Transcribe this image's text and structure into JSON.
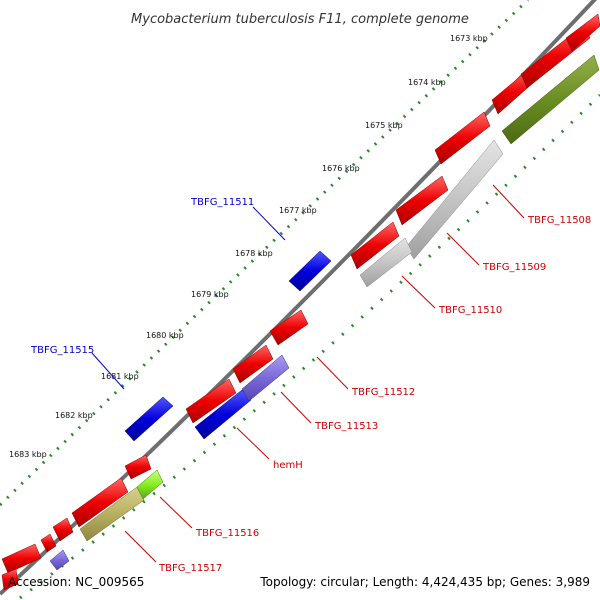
{
  "title": "Mycobacterium tuberculosis F11, complete genome",
  "footer": {
    "accession": "Accession: NC_009565",
    "summary": "Topology: circular; Length: 4,424,435 bp; Genes: 3,989"
  },
  "ticks": [
    "1673 kbp",
    "1674 kbp",
    "1675 kbp",
    "1676 kbp",
    "1677 kbp",
    "1678 kbp",
    "1679 kbp",
    "1680 kbp",
    "1681 kbp",
    "1682 kbp",
    "1683 kbp"
  ],
  "gene_labels": {
    "forward": [
      "TBFG_11511",
      "TBFG_11515"
    ],
    "reverse": [
      "TBFG_11508",
      "TBFG_11509",
      "TBFG_11510",
      "TBFG_11512",
      "TBFG_11513",
      "hemH",
      "TBFG_11516",
      "TBFG_11517"
    ]
  },
  "colors": {
    "backbone": "#6e6e6e",
    "forward_cds": "#0000dd",
    "reverse_cds": "#ee0000",
    "forward_label": "#0000cc",
    "reverse_label": "#cc0000",
    "tick_dots": "#2a8a2a",
    "feature_grey": "#c8c8c8",
    "feature_olive": "#6b8e23",
    "feature_khaki": "#b8b060",
    "feature_purple": "#7a6ad8",
    "feature_lime": "#88ee22"
  }
}
